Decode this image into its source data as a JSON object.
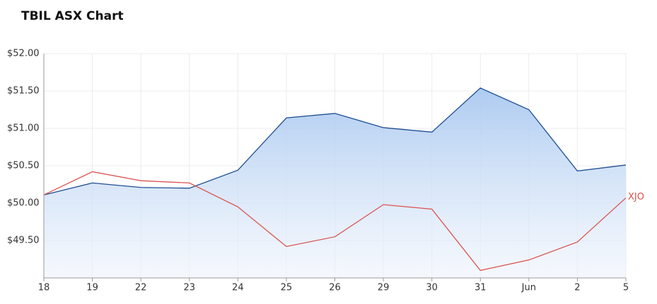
{
  "chart_data": {
    "type": "line",
    "title": "TBIL ASX Chart",
    "categories": [
      "18",
      "19",
      "22",
      "23",
      "24",
      "25",
      "26",
      "29",
      "30",
      "31",
      "Jun",
      "2",
      "5"
    ],
    "series": [
      {
        "color": "#1f4e93",
        "area": true,
        "values": [
          50.11,
          50.27,
          50.21,
          50.2,
          50.44,
          51.14,
          51.2,
          51.01,
          50.95,
          51.54,
          51.25,
          50.43,
          50.51
        ]
      },
      {
        "name": "XJO",
        "color": "#d9534f",
        "values": [
          50.11,
          50.42,
          50.3,
          50.27,
          49.95,
          49.42,
          49.55,
          49.98,
          49.92,
          49.1,
          49.24,
          49.48,
          50.07
        ]
      }
    ],
    "ylim": [
      49,
      52
    ],
    "yticks": [
      {
        "value": 49.5,
        "label": "$49.50"
      },
      {
        "value": 50,
        "label": "$50.00"
      },
      {
        "value": 50.5,
        "label": "$50.50"
      },
      {
        "value": 51,
        "label": "$51.00"
      },
      {
        "value": 51.5,
        "label": "$51.50"
      },
      {
        "value": 52,
        "label": "$52.00"
      }
    ],
    "grid": true
  }
}
